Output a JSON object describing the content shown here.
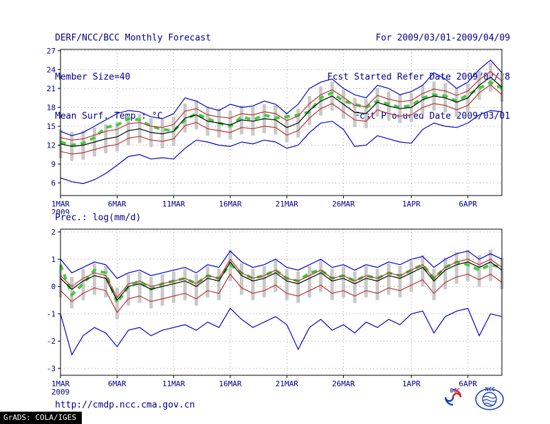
{
  "header": {
    "title": "DERF/NCC/BCC Monthly Forecast",
    "member_size": "Member Size=40",
    "for_range": "For 2009/03/01-2009/04/09",
    "refer_date": "Fcst Started Refer Date 2009/02/28",
    "produced_date": "Fcst Produced Date 2009/03/01"
  },
  "footer": {
    "url": "http://cmdp.ncc.cma.gov.cn",
    "grads": "GrADS: COLA/IGES",
    "bcc_label": "BCC",
    "ncc_label": "NCC"
  },
  "colors": {
    "text": "#00008b",
    "frame": "#000000",
    "grid": "#9a9a9a",
    "blue_envelope": "#0000cd",
    "red_quartile": "#c03030",
    "black_mean": "#000000",
    "green_highlight": "#3ecc3e",
    "gray_spread": "#c9c9c9"
  },
  "chart_data": [
    {
      "type": "line",
      "title": "Mean Surf. Temp.: °C",
      "x_count": 40,
      "xticks": [
        {
          "day": 0,
          "label": "1MAR",
          "sub": "2009"
        },
        {
          "day": 5,
          "label": "6MAR"
        },
        {
          "day": 10,
          "label": "11MAR"
        },
        {
          "day": 15,
          "label": "16MAR"
        },
        {
          "day": 20,
          "label": "21MAR"
        },
        {
          "day": 25,
          "label": "26MAR"
        },
        {
          "day": 31,
          "label": "1APR"
        },
        {
          "day": 36,
          "label": "6APR"
        }
      ],
      "ylim": [
        4.0,
        27.2
      ],
      "yticks": [
        6,
        9,
        12,
        15,
        18,
        21,
        24,
        27
      ],
      "grid": true,
      "legend": "none",
      "spread_bars": {
        "color": "#c9c9c9",
        "low": [
          9.9,
          9.5,
          9.7,
          10.2,
          10.7,
          11.0,
          12.0,
          12.3,
          11.7,
          11.5,
          11.9,
          14.0,
          14.5,
          13.5,
          13.2,
          12.9,
          13.7,
          13.5,
          13.9,
          13.7,
          12.5,
          13.2,
          15.2,
          16.7,
          17.5,
          16.2,
          14.9,
          14.7,
          16.5,
          15.9,
          15.5,
          15.7,
          16.9,
          17.5,
          17.2,
          16.5,
          17.2,
          19.2,
          20.5,
          18.9
        ],
        "high": [
          14.5,
          14.1,
          14.3,
          14.8,
          15.3,
          15.6,
          16.6,
          16.9,
          16.3,
          16.1,
          16.5,
          18.6,
          19.1,
          18.1,
          17.8,
          17.5,
          18.3,
          18.1,
          18.5,
          18.3,
          17.1,
          17.8,
          19.8,
          21.3,
          22.1,
          20.8,
          19.5,
          19.3,
          21.1,
          20.5,
          20.1,
          20.3,
          21.5,
          22.1,
          21.8,
          21.1,
          21.8,
          23.8,
          25.1,
          23.5
        ]
      },
      "series": [
        {
          "name": "highlight-dashes",
          "color": "#3ecc3e",
          "style": "thick-dashed",
          "values": [
            12.5,
            12.0,
            12.3,
            13.2,
            14.8,
            15.2,
            16.2,
            16.0,
            15.0,
            14.5,
            14.3,
            16.0,
            17.0,
            16.2,
            15.5,
            15.0,
            16.5,
            16.0,
            16.8,
            16.3,
            16.5,
            16.8,
            17.3,
            19.5,
            20.3,
            19.0,
            18.5,
            18.0,
            19.0,
            18.5,
            18.0,
            18.3,
            19.5,
            20.0,
            19.8,
            19.0,
            20.0,
            21.0,
            22.0,
            21.0
          ]
        },
        {
          "name": "ensemble-max",
          "color": "#0000cd",
          "style": "solid",
          "values": [
            14.2,
            13.5,
            14.0,
            15.0,
            16.0,
            17.0,
            17.5,
            17.3,
            16.5,
            16.2,
            17.0,
            19.5,
            19.0,
            18.0,
            17.5,
            18.5,
            18.0,
            18.2,
            19.0,
            18.5,
            17.0,
            18.5,
            21.0,
            22.0,
            22.5,
            21.0,
            20.0,
            19.5,
            21.5,
            21.0,
            20.0,
            20.5,
            21.5,
            23.5,
            22.5,
            21.0,
            22.0,
            24.0,
            25.5,
            23.5
          ]
        },
        {
          "name": "upper-quartile",
          "color": "#c03030",
          "style": "solid",
          "values": [
            13.2,
            12.8,
            13.0,
            13.6,
            14.2,
            14.5,
            15.4,
            15.6,
            15.0,
            14.8,
            15.3,
            17.4,
            17.8,
            16.8,
            16.5,
            16.3,
            17.0,
            16.8,
            17.3,
            17.0,
            15.9,
            16.6,
            18.6,
            20.0,
            20.8,
            19.6,
            18.3,
            18.1,
            19.9,
            19.3,
            18.9,
            19.1,
            20.2,
            20.9,
            20.6,
            19.9,
            20.6,
            22.4,
            23.7,
            22.2
          ]
        },
        {
          "name": "ensemble-mean",
          "color": "#000000",
          "style": "solid",
          "values": [
            12.2,
            11.8,
            12.0,
            12.5,
            13.0,
            13.3,
            14.3,
            14.6,
            14.0,
            13.8,
            14.2,
            16.3,
            16.8,
            15.8,
            15.5,
            15.2,
            16.0,
            15.8,
            16.2,
            16.0,
            14.8,
            15.5,
            17.5,
            19.0,
            19.8,
            18.5,
            17.2,
            17.0,
            18.8,
            18.2,
            17.8,
            18.0,
            19.2,
            19.8,
            19.5,
            18.8,
            19.5,
            21.5,
            22.8,
            21.2
          ]
        },
        {
          "name": "lower-quartile",
          "color": "#c03030",
          "style": "solid",
          "values": [
            11.0,
            10.6,
            10.8,
            11.3,
            11.8,
            12.1,
            13.1,
            13.4,
            12.8,
            12.6,
            13.0,
            15.1,
            15.6,
            14.6,
            14.3,
            14.0,
            14.8,
            14.6,
            15.0,
            14.8,
            13.6,
            14.3,
            16.3,
            17.8,
            18.6,
            17.3,
            16.0,
            15.8,
            17.6,
            17.0,
            16.6,
            16.8,
            18.0,
            18.6,
            18.3,
            17.6,
            18.3,
            20.3,
            21.6,
            20.0
          ]
        },
        {
          "name": "ensemble-min",
          "color": "#0000cd",
          "style": "solid",
          "values": [
            6.8,
            6.2,
            5.9,
            6.5,
            7.5,
            8.8,
            10.2,
            10.5,
            9.8,
            10.0,
            9.8,
            11.5,
            12.8,
            12.5,
            12.0,
            11.8,
            12.5,
            12.2,
            12.8,
            12.5,
            11.5,
            12.0,
            14.0,
            15.5,
            15.8,
            14.5,
            11.8,
            12.0,
            13.5,
            13.0,
            12.5,
            12.3,
            14.5,
            15.5,
            15.0,
            14.8,
            15.5,
            16.8,
            17.5,
            17.3
          ]
        }
      ]
    },
    {
      "type": "line",
      "title": "Prec.: log(mm/d)",
      "x_count": 40,
      "xticks": [
        {
          "day": 0,
          "label": "1MAR",
          "sub": "2009"
        },
        {
          "day": 5,
          "label": "6MAR"
        },
        {
          "day": 10,
          "label": "11MAR"
        },
        {
          "day": 15,
          "label": "16MAR"
        },
        {
          "day": 20,
          "label": "21MAR"
        },
        {
          "day": 25,
          "label": "26MAR"
        },
        {
          "day": 31,
          "label": "1APR"
        },
        {
          "day": 36,
          "label": "6APR"
        }
      ],
      "ylim": [
        -3.25,
        2.1
      ],
      "yticks": [
        -3,
        -2,
        -1,
        0,
        1,
        2
      ],
      "grid": true,
      "legend": "none",
      "spread_bars": {
        "color": "#c9c9c9",
        "low": [
          -0.4,
          -0.8,
          -0.5,
          -0.3,
          -0.4,
          -1.2,
          -0.7,
          -0.6,
          -0.8,
          -0.7,
          -0.6,
          -0.5,
          -0.7,
          -0.4,
          -0.5,
          0.2,
          -0.3,
          -0.5,
          -0.4,
          -0.2,
          -0.5,
          -0.6,
          -0.4,
          -0.2,
          -0.5,
          -0.4,
          -0.6,
          -0.4,
          -0.5,
          -0.3,
          -0.4,
          -0.2,
          0.0,
          -0.5,
          -0.1,
          0.1,
          0.2,
          0.0,
          0.2,
          -0.1
        ],
        "high": [
          0.75,
          0.35,
          0.65,
          0.85,
          0.75,
          -0.05,
          0.45,
          0.55,
          0.35,
          0.45,
          0.55,
          0.65,
          0.45,
          0.75,
          0.65,
          1.35,
          0.85,
          0.65,
          0.75,
          0.95,
          0.65,
          0.55,
          0.75,
          0.95,
          0.65,
          0.75,
          0.55,
          0.75,
          0.65,
          0.85,
          0.75,
          0.95,
          1.15,
          0.65,
          1.05,
          1.25,
          1.35,
          1.15,
          1.35,
          1.05
        ]
      },
      "series": [
        {
          "name": "highlight-dashes",
          "color": "#3ecc3e",
          "style": "thick-dashed",
          "values": [
            0.8,
            -0.3,
            0.1,
            0.6,
            0.5,
            -0.6,
            0.0,
            0.2,
            -0.1,
            0.1,
            0.2,
            0.3,
            0.1,
            0.4,
            0.3,
            0.8,
            0.5,
            0.3,
            0.4,
            0.6,
            0.3,
            0.2,
            0.5,
            0.6,
            0.3,
            0.4,
            0.2,
            0.4,
            0.3,
            0.5,
            0.4,
            0.6,
            0.8,
            0.3,
            0.7,
            0.9,
            0.8,
            0.6,
            0.8,
            0.7
          ]
        },
        {
          "name": "ensemble-max",
          "color": "#0000cd",
          "style": "solid",
          "values": [
            1.0,
            0.5,
            0.7,
            0.9,
            0.8,
            0.3,
            0.5,
            0.6,
            0.4,
            0.5,
            0.6,
            0.7,
            0.5,
            0.8,
            0.7,
            1.3,
            0.9,
            0.7,
            0.8,
            1.0,
            0.7,
            0.6,
            0.8,
            1.0,
            0.7,
            0.8,
            0.6,
            0.8,
            0.7,
            0.9,
            0.8,
            1.0,
            1.1,
            0.7,
            1.0,
            1.2,
            1.3,
            1.0,
            1.2,
            1.0
          ]
        },
        {
          "name": "upper-quartile",
          "color": "#c03030",
          "style": "solid",
          "values": [
            0.4,
            0.0,
            0.3,
            0.5,
            0.4,
            -0.4,
            0.1,
            0.2,
            0.0,
            0.1,
            0.2,
            0.3,
            0.1,
            0.4,
            0.3,
            1.0,
            0.5,
            0.3,
            0.4,
            0.6,
            0.3,
            0.2,
            0.4,
            0.6,
            0.3,
            0.4,
            0.2,
            0.4,
            0.3,
            0.5,
            0.4,
            0.6,
            0.8,
            0.3,
            0.7,
            0.9,
            1.0,
            0.8,
            1.0,
            0.7
          ]
        },
        {
          "name": "ensemble-mean",
          "color": "#000000",
          "style": "solid",
          "values": [
            0.3,
            -0.1,
            0.2,
            0.4,
            0.3,
            -0.5,
            0.0,
            0.1,
            -0.1,
            0.0,
            0.1,
            0.2,
            0.0,
            0.3,
            0.2,
            0.9,
            0.4,
            0.2,
            0.3,
            0.5,
            0.2,
            0.1,
            0.3,
            0.5,
            0.2,
            0.3,
            0.1,
            0.3,
            0.2,
            0.4,
            0.3,
            0.5,
            0.7,
            0.2,
            0.6,
            0.8,
            0.9,
            0.7,
            0.9,
            0.6
          ]
        },
        {
          "name": "lower-quartile",
          "color": "#c03030",
          "style": "solid",
          "values": [
            -0.15,
            -0.55,
            -0.25,
            -0.05,
            -0.15,
            -0.95,
            -0.45,
            -0.35,
            -0.55,
            -0.45,
            -0.35,
            -0.25,
            -0.45,
            -0.15,
            -0.25,
            0.45,
            -0.05,
            -0.25,
            -0.15,
            0.05,
            -0.25,
            -0.35,
            -0.15,
            0.05,
            -0.25,
            -0.15,
            -0.35,
            -0.15,
            -0.25,
            -0.05,
            -0.15,
            0.05,
            0.25,
            -0.25,
            0.15,
            0.35,
            0.45,
            0.25,
            0.45,
            0.15
          ]
        },
        {
          "name": "ensemble-min",
          "color": "#0000cd",
          "style": "solid",
          "values": [
            -1.0,
            -2.5,
            -1.8,
            -1.5,
            -1.7,
            -2.2,
            -1.6,
            -1.5,
            -1.8,
            -1.6,
            -1.5,
            -1.4,
            -1.6,
            -1.3,
            -1.5,
            -0.8,
            -1.2,
            -1.5,
            -1.3,
            -1.1,
            -1.4,
            -2.3,
            -1.5,
            -1.2,
            -1.6,
            -1.4,
            -1.7,
            -1.3,
            -1.5,
            -1.2,
            -1.4,
            -1.0,
            -0.9,
            -1.7,
            -1.1,
            -0.9,
            -0.8,
            -1.8,
            -1.0,
            -1.1
          ]
        }
      ]
    }
  ]
}
